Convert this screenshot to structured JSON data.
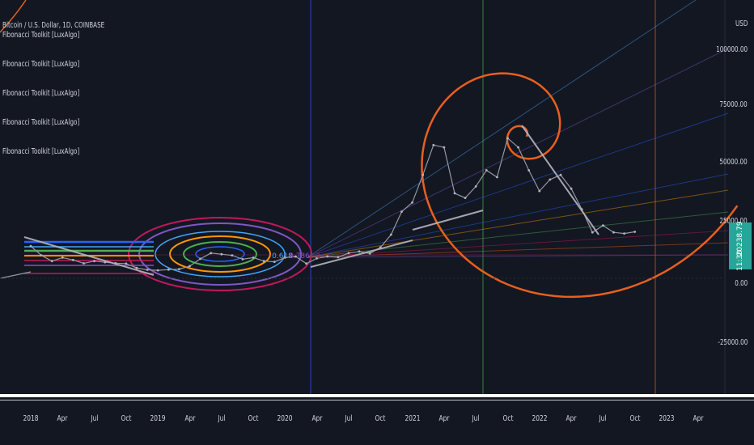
{
  "legend": {
    "symbol": "Bitcoin / U.S. Dollar, 1D, COINBASE",
    "indicators": [
      "Fibonacci Toolkit [LuxAlgo]",
      "Fibonacci Toolkit [LuxAlgo]",
      "Fibonacci Toolkit [LuxAlgo]",
      "Fibonacci Toolkit [LuxAlgo]",
      "Fibonacci Toolkit [LuxAlgo]"
    ]
  },
  "price_axis": {
    "currency": "USD",
    "labels": [
      "100000.00",
      "75000.00",
      "50000.00",
      "25000.00",
      "0.00",
      "-25000.00"
    ]
  },
  "last_price": {
    "value": "20238.79",
    "countdown": "11:30",
    "color": "#26a69a"
  },
  "fib_labels": [
    "0.618",
    "0.786",
    "1"
  ],
  "colors": {
    "background": "#131722",
    "price_line": "#9598a1",
    "spiral": "#e8601c",
    "fib_rings": [
      "#c2185b",
      "#7e57c2",
      "#42a5f5",
      "#ff9800",
      "#4caf50",
      "#2962ff"
    ]
  },
  "chart_data": {
    "type": "line",
    "title": "Bitcoin / U.S. Dollar, 1D, COINBASE",
    "xlabel": "",
    "ylabel": "USD",
    "x_tick_labels": [
      "2018",
      "Apr",
      "Jul",
      "Oct",
      "2019",
      "Apr",
      "Jul",
      "Oct",
      "2020",
      "Apr",
      "Jul",
      "Oct",
      "2021",
      "Apr",
      "Jul",
      "Oct",
      "2022",
      "Apr",
      "Jul",
      "Oct",
      "2023",
      "Apr"
    ],
    "ylim": [
      -40000,
      110000
    ],
    "series": [
      {
        "x": [
          "2018-01",
          "2018-02",
          "2018-03",
          "2018-04",
          "2018-05",
          "2018-06",
          "2018-07",
          "2018-08",
          "2018-09",
          "2018-10",
          "2018-11",
          "2018-12",
          "2019-01",
          "2019-02",
          "2019-03",
          "2019-04",
          "2019-05",
          "2019-06",
          "2019-07",
          "2019-08",
          "2019-09",
          "2019-10",
          "2019-11",
          "2019-12",
          "2020-01",
          "2020-02",
          "2020-03",
          "2020-04",
          "2020-05",
          "2020-06",
          "2020-07",
          "2020-08",
          "2020-09",
          "2020-10",
          "2020-11",
          "2020-12",
          "2021-01",
          "2021-02",
          "2021-03",
          "2021-04",
          "2021-05",
          "2021-06",
          "2021-07",
          "2021-08",
          "2021-09",
          "2021-10",
          "2021-11",
          "2021-12",
          "2022-01",
          "2022-02",
          "2022-03",
          "2022-04",
          "2022-05",
          "2022-06",
          "2022-07",
          "2022-08",
          "2022-09",
          "2022-10"
        ],
        "y": [
          14000,
          10000,
          7500,
          9000,
          8000,
          6500,
          7500,
          7000,
          6600,
          6400,
          4500,
          3700,
          3500,
          3800,
          4000,
          5300,
          8500,
          11000,
          10500,
          10000,
          8300,
          9000,
          7500,
          7200,
          9000,
          9500,
          6400,
          8700,
          9500,
          9200,
          11000,
          11700,
          10800,
          13500,
          19000,
          29000,
          33000,
          45000,
          58000,
          57000,
          37000,
          35000,
          40000,
          47000,
          44000,
          61000,
          57000,
          47000,
          38000,
          43000,
          45000,
          39000,
          30000,
          20000,
          23000,
          20000,
          19500,
          20238
        ]
      }
    ]
  }
}
